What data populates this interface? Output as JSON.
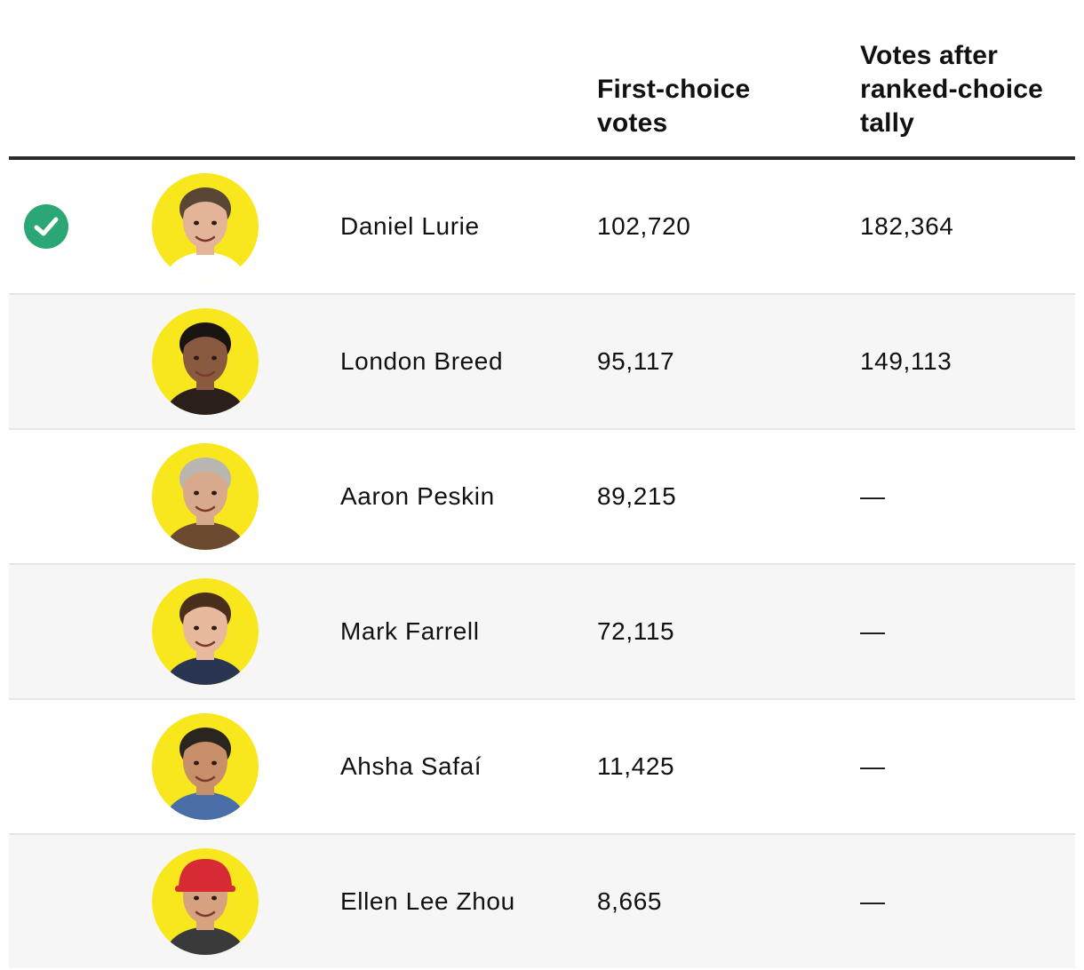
{
  "header": {
    "first_choice": "First-choice\nvotes",
    "ranked_choice": "Votes after\nranked-choice\ntally"
  },
  "colors": {
    "avatar_bg": "#f8e71c",
    "winner_check": "#2aa775",
    "header_rule": "#2b2b2b",
    "alt_row": "#f6f6f6"
  },
  "rows": [
    {
      "winner": true,
      "name": "Daniel Lurie",
      "first": "102,720",
      "rcv": "182,364",
      "avatar": "headshot-icon",
      "skin": "#e3b497",
      "hair": "#5a4634",
      "shirt": "#ffffff"
    },
    {
      "winner": false,
      "name": "London Breed",
      "first": "95,117",
      "rcv": "149,113",
      "avatar": "headshot-icon",
      "skin": "#8a5a40",
      "hair": "#1a1412",
      "shirt": "#2a1f1a"
    },
    {
      "winner": false,
      "name": "Aaron Peskin",
      "first": "89,215",
      "rcv": "—",
      "avatar": "headshot-icon",
      "skin": "#d9a98c",
      "hair": "#b9b6b1",
      "shirt": "#6b4a30"
    },
    {
      "winner": false,
      "name": "Mark Farrell",
      "first": "72,115",
      "rcv": "—",
      "avatar": "headshot-icon",
      "skin": "#e8b99c",
      "hair": "#4a2f1c",
      "shirt": "#2a3552"
    },
    {
      "winner": false,
      "name": "Ahsha Safaí",
      "first": "11,425",
      "rcv": "—",
      "avatar": "headshot-icon",
      "skin": "#c8906a",
      "hair": "#2b2520",
      "shirt": "#4a6fa8"
    },
    {
      "winner": false,
      "name": "Ellen Lee Zhou",
      "first": "8,665",
      "rcv": "—",
      "avatar": "headshot-icon",
      "skin": "#d7a27f",
      "hair": "#d62b35",
      "shirt": "#3a3a3a"
    }
  ]
}
